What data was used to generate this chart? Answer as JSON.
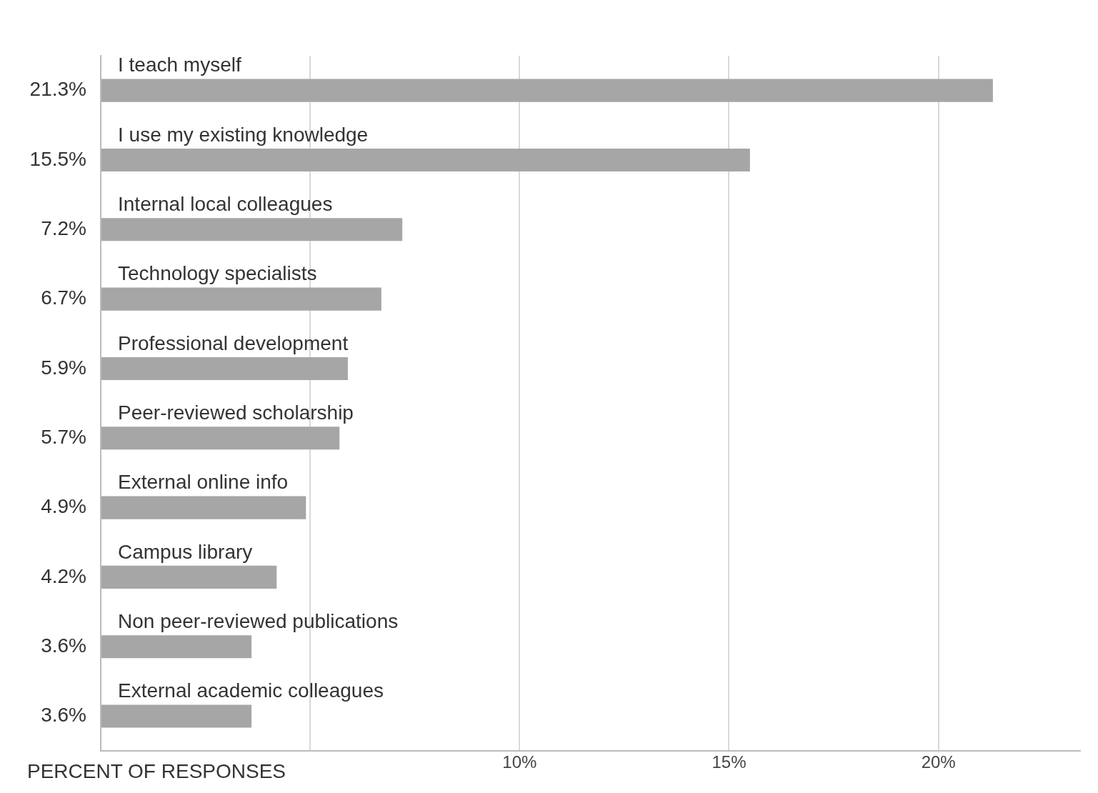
{
  "chart_data": {
    "type": "bar",
    "orientation": "horizontal",
    "xlabel": "PERCENT OF RESPONSES",
    "categories": [
      "I teach myself",
      "I use my existing knowledge",
      "Internal local colleagues",
      "Technology specialists",
      "Professional development",
      "Peer-reviewed scholarship",
      "External online info",
      "Campus library",
      "Non peer-reviewed publications",
      "External academic colleagues"
    ],
    "values": [
      21.3,
      15.5,
      7.2,
      6.7,
      5.9,
      5.7,
      4.9,
      4.2,
      3.6,
      3.6
    ],
    "value_labels": [
      "21.3%",
      "15.5%",
      "7.2%",
      "6.7%",
      "5.9%",
      "5.7%",
      "4.9%",
      "4.2%",
      "3.6%",
      "3.6%"
    ],
    "color": "#a6a6a6",
    "xlim": [
      0,
      23.4
    ],
    "xticks": [
      {
        "value": 0,
        "label": null
      },
      {
        "value": 5,
        "label": null
      },
      {
        "value": 10,
        "label": "10%"
      },
      {
        "value": 15,
        "label": "15%"
      },
      {
        "value": 20,
        "label": "20%"
      }
    ],
    "grid": "x",
    "legend": false
  }
}
